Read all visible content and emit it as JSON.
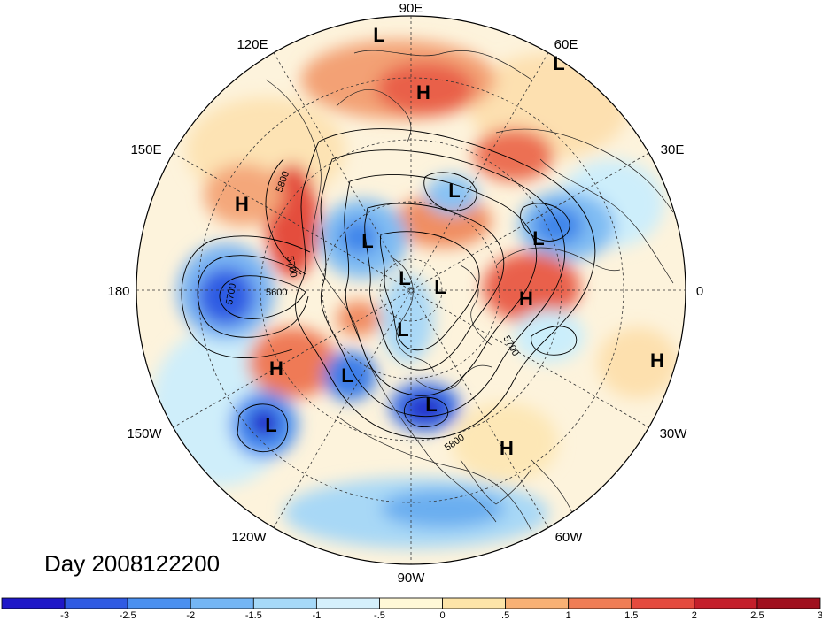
{
  "title": "Day 2008122200",
  "longitude_labels": [
    "90E",
    "60E",
    "30E",
    "0",
    "30W",
    "60W",
    "90W",
    "120W",
    "150W",
    "180",
    "150E",
    "120E"
  ],
  "contour_labels": [
    "5800",
    "5700",
    "5600",
    "5700",
    "5700",
    "5800"
  ],
  "pressure_centers": [
    {
      "type": "L"
    },
    {
      "type": "L"
    },
    {
      "type": "H"
    },
    {
      "type": "L"
    },
    {
      "type": "L"
    },
    {
      "type": "H"
    },
    {
      "type": "L"
    },
    {
      "type": "L"
    },
    {
      "type": "L"
    },
    {
      "type": "H"
    },
    {
      "type": "L"
    },
    {
      "type": "L"
    },
    {
      "type": "H"
    },
    {
      "type": "H"
    },
    {
      "type": "L"
    },
    {
      "type": "L"
    },
    {
      "type": "H"
    }
  ],
  "colorbar": {
    "colors": [
      "#1f18c8",
      "#2f5be3",
      "#4a90f0",
      "#74b6f5",
      "#a6d9f8",
      "#d5f0fc",
      "#fff8d7",
      "#fde4a8",
      "#f8b175",
      "#f07d55",
      "#e44a3e",
      "#c41f2b",
      "#a0101e"
    ],
    "tick_labels": [
      "-3",
      "-2.5",
      "-2",
      "-1.5",
      "-1",
      "-.5",
      "0",
      ".5",
      "1",
      "1.5",
      "2",
      "2.5",
      "3"
    ]
  }
}
